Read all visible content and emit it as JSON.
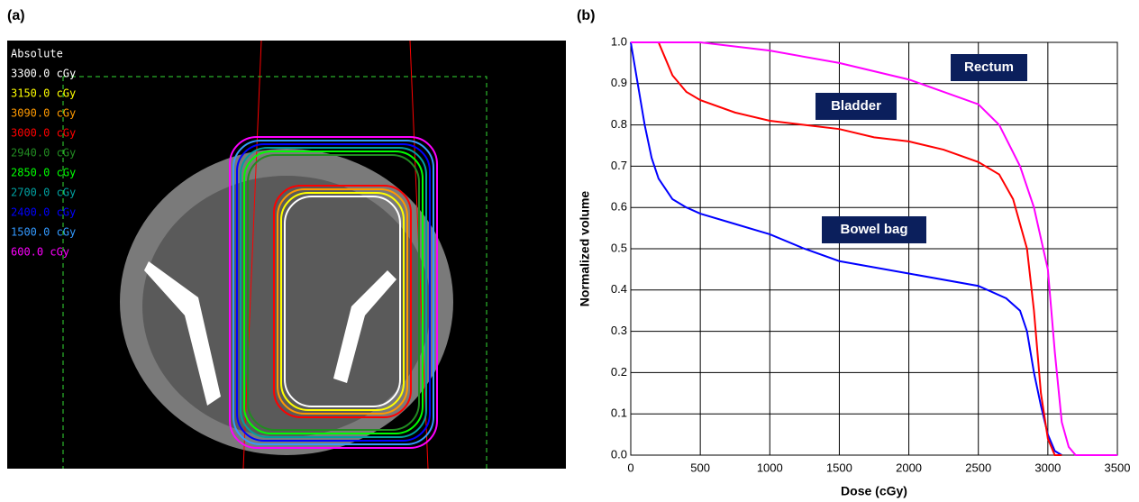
{
  "panel_labels": [
    "(a)",
    "(b)"
  ],
  "dose_legend": {
    "title": "Absolute",
    "levels": [
      {
        "label": "3300.0 cGy",
        "color": "#ffffff"
      },
      {
        "label": "3150.0 cGy",
        "color": "#ffff00"
      },
      {
        "label": "3090.0 cGy",
        "color": "#ff9900"
      },
      {
        "label": "3000.0 cGy",
        "color": "#ff0000"
      },
      {
        "label": "2940.0 cGy",
        "color": "#228b22"
      },
      {
        "label": "2850.0 cGy",
        "color": "#00ff00"
      },
      {
        "label": "2700.0 cGy",
        "color": "#00a0a0"
      },
      {
        "label": "2400.0 cGy",
        "color": "#0000ff"
      },
      {
        "label": "1500.0 cGy",
        "color": "#3399ff"
      },
      {
        "label": "600.0 cGy",
        "color": "#ff00ff"
      }
    ]
  },
  "chart_data": {
    "type": "line",
    "xlabel": "Dose (cGy)",
    "ylabel": "Normalized volume",
    "xlim": [
      0,
      3500
    ],
    "xticks": [
      0,
      500,
      1000,
      1500,
      2000,
      2500,
      3000,
      3500
    ],
    "ylim": [
      0,
      1
    ],
    "yticks": [
      {
        "value": 0,
        "label": "0.0"
      },
      {
        "value": 0.1,
        "label": "0.1"
      },
      {
        "value": 0.2,
        "label": "0.2"
      },
      {
        "value": 0.3,
        "label": "0.3"
      },
      {
        "value": 0.4,
        "label": "0.4"
      },
      {
        "value": 0.5,
        "label": "0.5"
      },
      {
        "value": 0.6,
        "label": "0.6"
      },
      {
        "value": 0.7,
        "label": "0.7"
      },
      {
        "value": 0.8,
        "label": "0.8"
      },
      {
        "value": 0.9,
        "label": "0.9"
      },
      {
        "value": 1,
        "label": "1.0"
      }
    ],
    "grid": true,
    "series": [
      {
        "name": "Bowel bag",
        "color": "#0000ff",
        "x": [
          0,
          50,
          100,
          150,
          200,
          300,
          400,
          500,
          750,
          1000,
          1250,
          1500,
          2000,
          2500,
          2700,
          2800,
          2850,
          2900,
          2950,
          3000,
          3050,
          3100
        ],
        "values": [
          1.0,
          0.9,
          0.8,
          0.72,
          0.67,
          0.62,
          0.6,
          0.585,
          0.56,
          0.535,
          0.5,
          0.47,
          0.44,
          0.41,
          0.38,
          0.35,
          0.3,
          0.2,
          0.12,
          0.05,
          0.01,
          0
        ]
      },
      {
        "name": "Bladder",
        "color": "#ff0000",
        "x": [
          0,
          200,
          250,
          300,
          400,
          500,
          750,
          1000,
          1250,
          1500,
          1750,
          2000,
          2250,
          2500,
          2650,
          2750,
          2850,
          2900,
          2950,
          3000,
          3050,
          3100
        ],
        "values": [
          1.0,
          1.0,
          0.96,
          0.92,
          0.88,
          0.86,
          0.83,
          0.81,
          0.8,
          0.79,
          0.77,
          0.76,
          0.74,
          0.71,
          0.68,
          0.62,
          0.5,
          0.35,
          0.15,
          0.04,
          0,
          0
        ]
      },
      {
        "name": "Rectum",
        "color": "#ff00ff",
        "x": [
          0,
          500,
          1000,
          1500,
          2000,
          2500,
          2650,
          2800,
          2900,
          3000,
          3050,
          3100,
          3150,
          3200,
          3500
        ],
        "values": [
          1.0,
          1.0,
          0.98,
          0.95,
          0.91,
          0.85,
          0.8,
          0.7,
          0.6,
          0.45,
          0.25,
          0.08,
          0.02,
          0,
          0
        ]
      }
    ]
  }
}
